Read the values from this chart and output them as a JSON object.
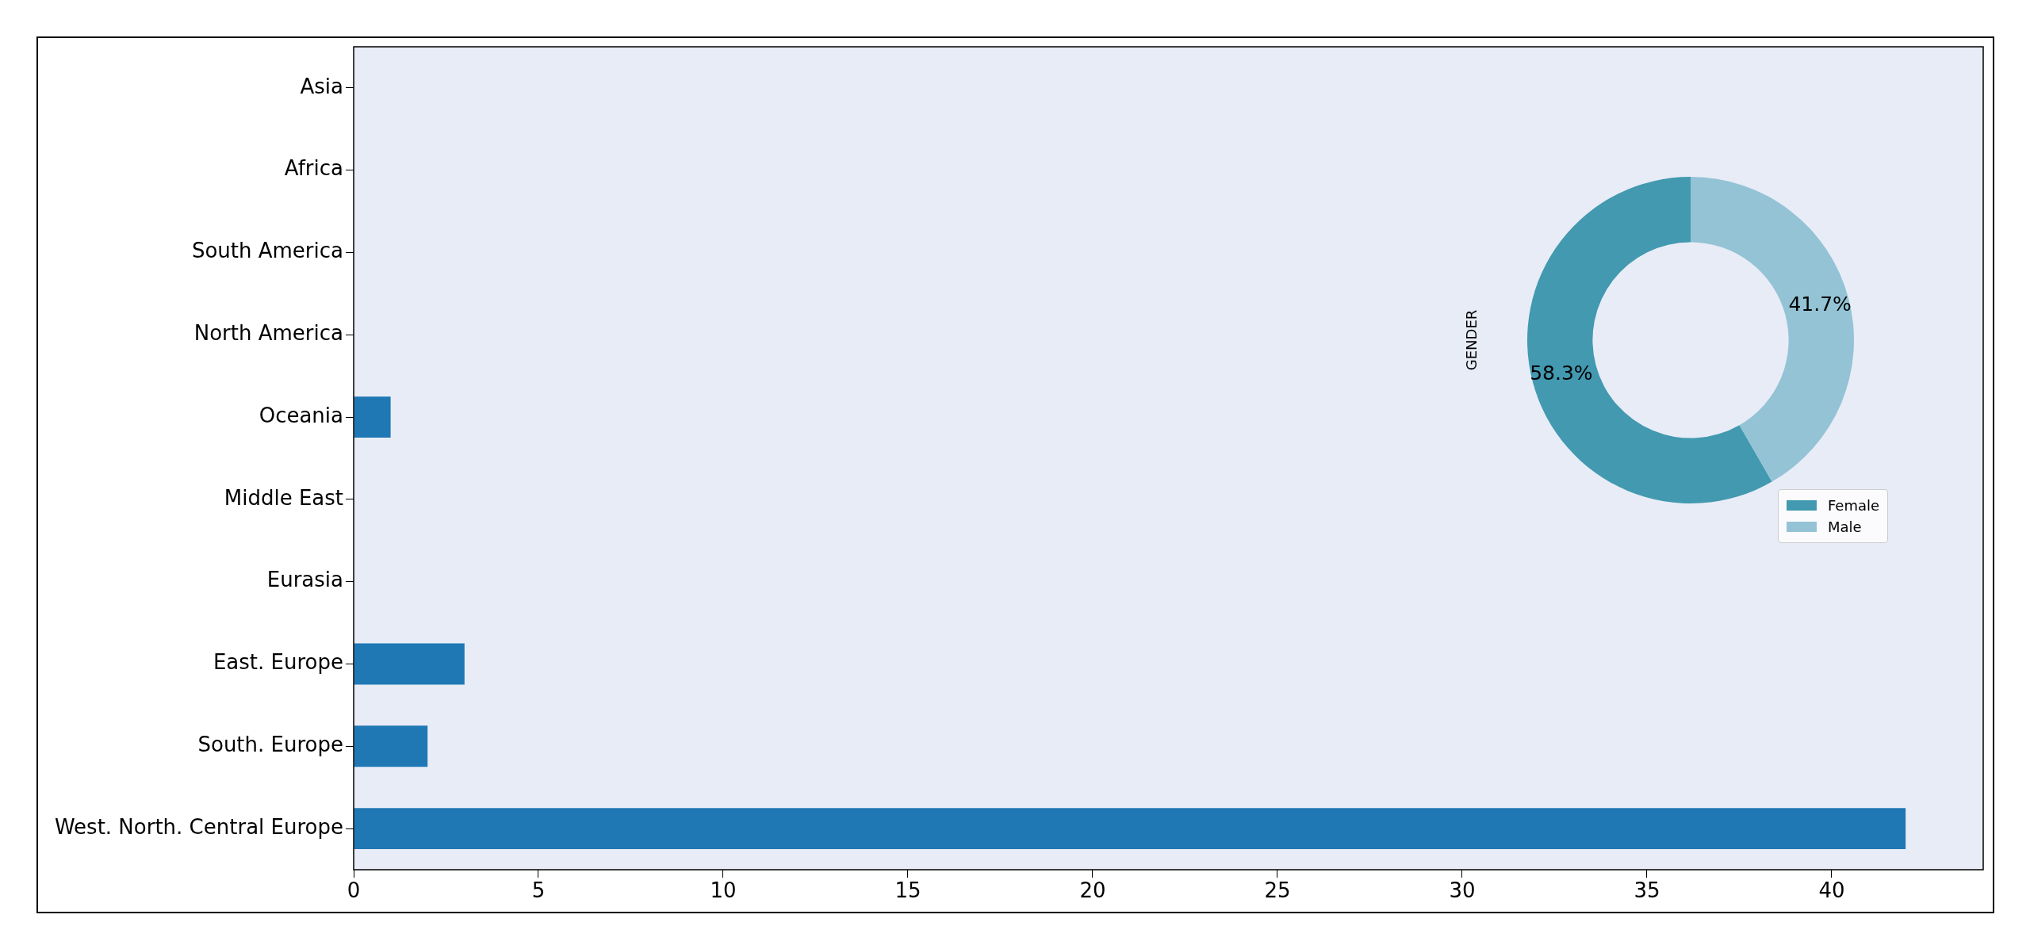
{
  "chart_data": [
    {
      "type": "bar",
      "orientation": "horizontal",
      "categories": [
        "Asia",
        "Africa",
        "South America",
        "North America",
        "Oceania",
        "Middle East",
        "Eurasia",
        "East. Europe",
        "South. Europe",
        "West. North. Central Europe"
      ],
      "values": [
        0,
        0,
        0,
        0,
        1,
        0,
        0,
        3,
        2,
        42
      ],
      "color": "#1f77b4",
      "xlim": [
        0,
        44.1
      ],
      "xticks": [
        0,
        5,
        10,
        15,
        20,
        25,
        30,
        35,
        40
      ],
      "grid": false
    },
    {
      "type": "donut",
      "ylabel": "GENDER",
      "categories": [
        "Female",
        "Male"
      ],
      "values": [
        58.3,
        41.7
      ],
      "colors": [
        "#4299b0",
        "#93c3d5"
      ],
      "value_labels": [
        "58.3%",
        "41.7%"
      ],
      "legend": "bottom right"
    }
  ]
}
